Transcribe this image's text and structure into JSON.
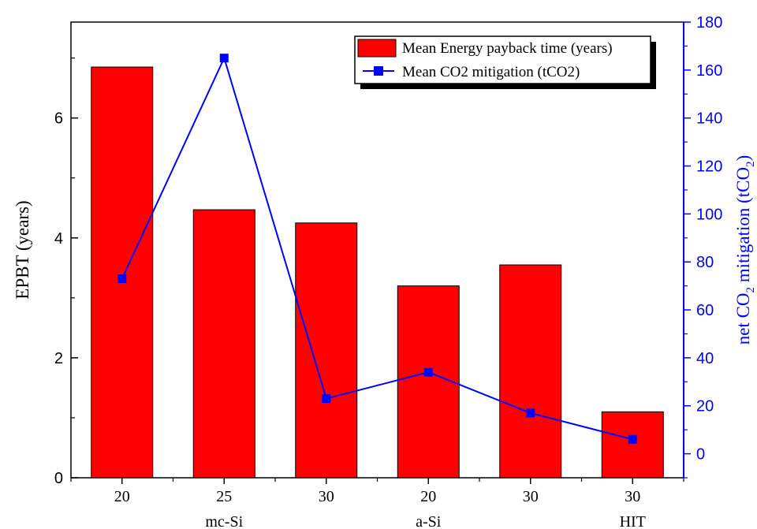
{
  "chart_data": {
    "type": "bar",
    "categories": [
      "20",
      "25",
      "30",
      "20",
      "30",
      "30"
    ],
    "groups": [
      "mc-Si",
      "a-Si",
      "HIT"
    ],
    "series": [
      {
        "name": "Mean Energy payback time (years)",
        "type": "bar",
        "axis": "left",
        "values": [
          6.85,
          4.47,
          4.25,
          3.2,
          3.55,
          1.1
        ]
      },
      {
        "name": "Mean CO2 mitigation (tCO2)",
        "type": "line",
        "axis": "right",
        "values": [
          73,
          165,
          23,
          34,
          17,
          6
        ]
      }
    ],
    "ylabel": "EPBT (years)",
    "y2label": "net CO",
    "y2label_sub": "2",
    "y2label_rest": " mitigation  (tCO",
    "y2label_sub2": "2",
    "y2label_end": ")",
    "ylim": [
      0,
      7.6
    ],
    "y2lim": [
      -10,
      180
    ],
    "yticks": [
      0,
      2,
      4,
      6
    ],
    "y2ticks": [
      0,
      20,
      40,
      60,
      80,
      100,
      120,
      140,
      160,
      180
    ],
    "legend_position": "top-right",
    "colors": {
      "bar": "#ff0000",
      "bar_edge": "#000000",
      "line": "#0000ff",
      "right_axis": "#0000ff",
      "left_axis": "#000000"
    }
  }
}
